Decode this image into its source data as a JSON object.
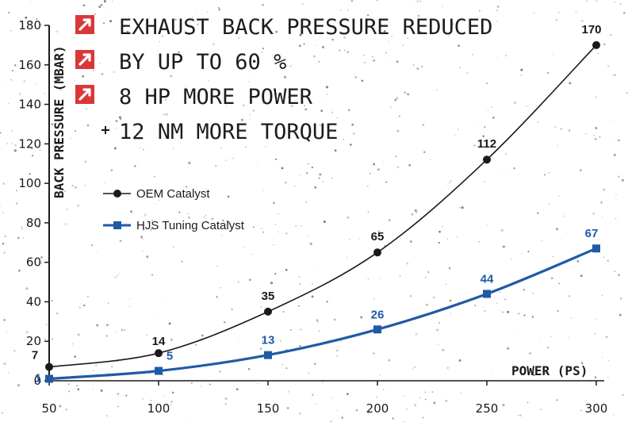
{
  "claims": [
    {
      "text": "EXHAUST BACK PRESSURE REDUCED",
      "marker": "arrow-badge-icon"
    },
    {
      "text": "BY UP TO 60 %",
      "marker": "arrow-badge-icon"
    },
    {
      "text": "8 HP MORE POWER",
      "marker": "arrow-badge-icon"
    },
    {
      "text": "12 NM MORE TORQUE",
      "marker": "plus"
    }
  ],
  "colors": {
    "badge": "#d9383a",
    "oem": "#1a1a1a",
    "hjs": "#1f5aa6",
    "background": "#ffffff"
  },
  "chart_data": {
    "type": "line",
    "title": "",
    "xlabel": "POWER (PS)",
    "ylabel": "BACK PRESSURE (MBAR)",
    "x": [
      50,
      100,
      150,
      200,
      250,
      300
    ],
    "x_tick_labels": [
      "50",
      "100",
      "150",
      "200",
      "250",
      "300"
    ],
    "y_ticks": [
      0,
      20,
      40,
      60,
      80,
      100,
      120,
      140,
      160,
      180
    ],
    "xlim": [
      50,
      300
    ],
    "ylim": [
      0,
      180
    ],
    "grid": false,
    "legend_position": "left",
    "series": [
      {
        "name": "OEM Catalyst",
        "values": [
          7,
          14,
          35,
          65,
          112,
          170
        ],
        "labels": [
          "7",
          "14",
          "35",
          "65",
          "112",
          "170"
        ],
        "color": "#1a1a1a",
        "marker": "circle"
      },
      {
        "name": "HJS Tuning Catalyst",
        "values": [
          1,
          5,
          13,
          26,
          44,
          67
        ],
        "labels": [
          "1",
          "5",
          "13",
          "26",
          "44",
          "67"
        ],
        "color": "#1f5aa6",
        "marker": "square"
      }
    ]
  }
}
